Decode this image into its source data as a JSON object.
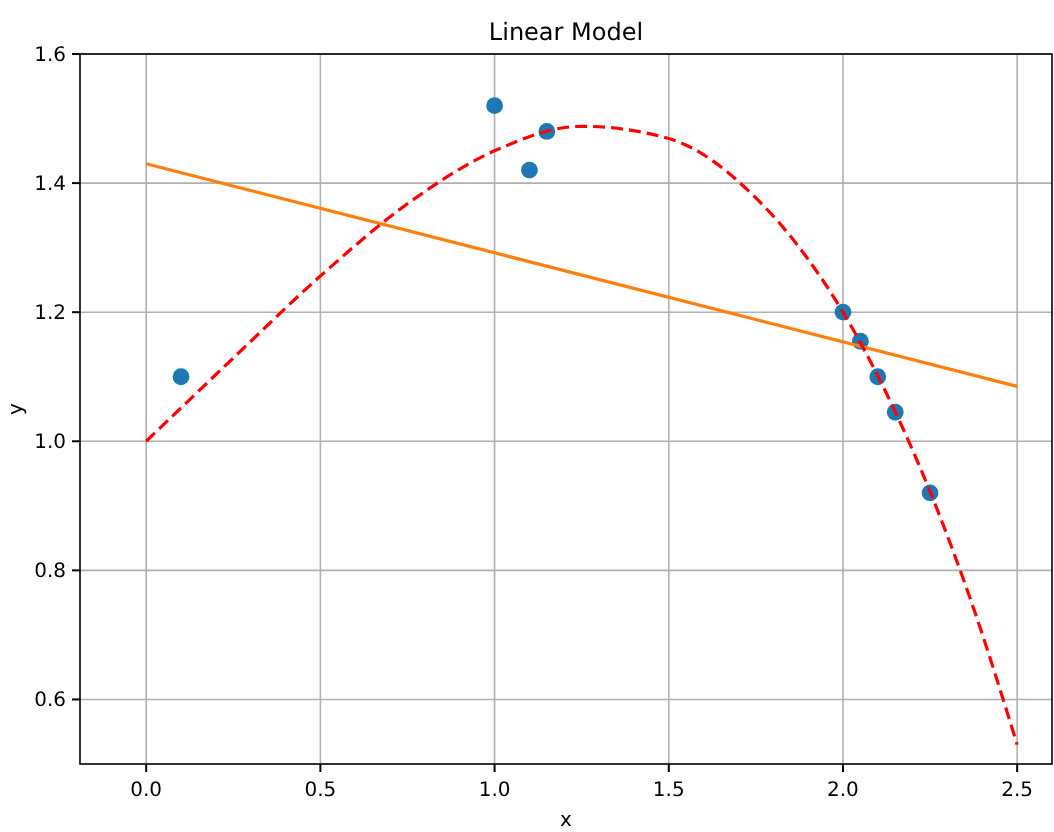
{
  "chart_data": {
    "type": "scatter",
    "title": "Linear Model",
    "xlabel": "x",
    "ylabel": "y",
    "xlim": [
      -0.19,
      2.6
    ],
    "ylim": [
      0.5,
      1.6
    ],
    "xticks": [
      {
        "value": 0,
        "label": "0.0"
      },
      0.5,
      {
        "value": 1,
        "label": "1.0"
      },
      1.5,
      {
        "value": 2,
        "label": "2.0"
      },
      2.5
    ],
    "yticks": [
      0.6,
      0.8,
      {
        "value": 1,
        "label": "1.0"
      },
      1.2,
      1.4,
      1.6
    ],
    "grid": true,
    "series": [
      {
        "color": "#1f77b4",
        "marker": "circle",
        "x": [
          0.1,
          1.0,
          1.1,
          1.15,
          2.0,
          2.05,
          2.1,
          2.15,
          2.25
        ],
        "values": [
          1.1,
          1.52,
          1.42,
          1.48,
          1.2,
          1.155,
          1.1,
          1.045,
          0.92
        ]
      },
      {
        "type": "line",
        "color": "#ff7f0e",
        "line_style": "solid",
        "x": [
          0,
          2.5
        ],
        "values": [
          1.43,
          1.085
        ]
      },
      {
        "type": "line",
        "color": "#ff0000",
        "line_style": "dashed",
        "x": [
          0,
          0.25,
          0.5,
          0.75,
          1.0,
          1.25,
          1.5,
          1.75,
          1.875,
          2.0,
          2.125,
          2.25,
          2.375,
          2.5
        ],
        "values": [
          1.0,
          1.129,
          1.256,
          1.368,
          1.45,
          1.488,
          1.469,
          1.377,
          1.3,
          1.2,
          1.074,
          0.922,
          0.741,
          0.53
        ]
      }
    ]
  }
}
